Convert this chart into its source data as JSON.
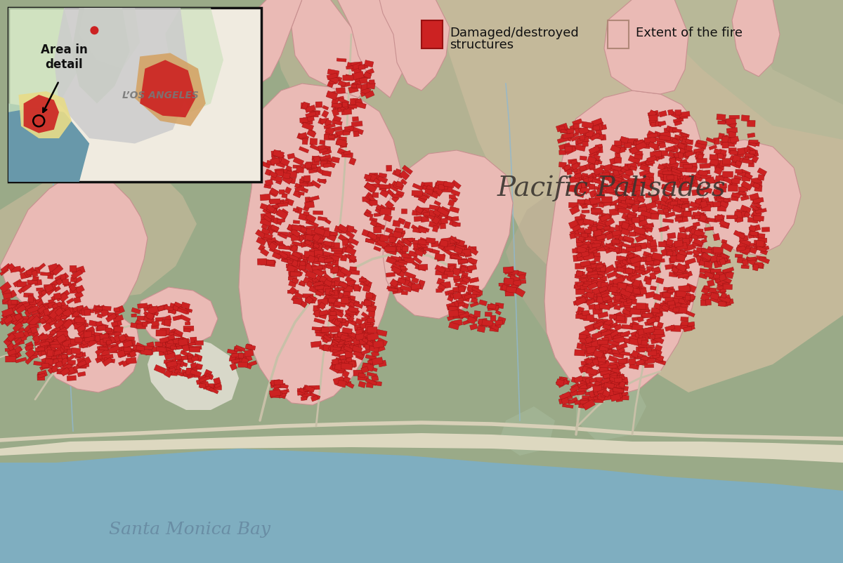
{
  "fig_width": 12.0,
  "fig_height": 8.03,
  "dpi": 100,
  "bg_hill_color": "#9ea d8f",
  "bg_olive": "#9aaa88",
  "bg_tan": "#c4b99a",
  "bg_tan2": "#b8ac94",
  "water_color": "#7faec0",
  "sand_color": "#e8e0cc",
  "green_light": "#b8c8a0",
  "green_dark": "#8a9e7a",
  "fire_pink": "#eabab5",
  "fire_pink_edge": "#c89090",
  "red_damage": "#cc2222",
  "red_damage_edge": "#991111",
  "road_color": "#d8ceb8",
  "road_light": "#e8e0d0",
  "stream_color": "#90b8d0",
  "inset_bg": "#f0ebe0",
  "inset_border": "#111111",
  "inset_water": "#6898aa",
  "inset_green1": "#c8e0b8",
  "inset_green2": "#a8c890",
  "inset_gray": "#cccccc",
  "inset_yellow": "#e8dc88",
  "inset_orange": "#d4a060",
  "text_dark": "#222222",
  "text_water": "#6688a0",
  "text_la": "#888888",
  "legend_text": "#111111",
  "place_name": "Pacific Palisades",
  "water_name": "Santa Monica Bay",
  "la_name": "L’OS ANGELES",
  "inset_note": "Area in\ndetail",
  "leg1a": "Damaged/destroyed",
  "leg1b": "structures",
  "leg2": "Extent of the fire"
}
